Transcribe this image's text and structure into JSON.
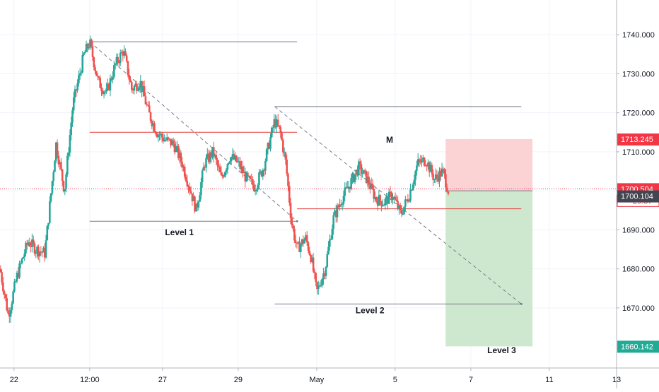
{
  "chart_data": {
    "type": "candlestick",
    "instrument_note": "",
    "y_axis": {
      "range": [
        1654.6,
        1748.9
      ],
      "ticks": [
        1740,
        1730,
        1720,
        1710,
        1700,
        1690,
        1680,
        1670
      ],
      "tick_labels": [
        "1740.000",
        "1730.000",
        "1720.000",
        "1710.000",
        "1700.000",
        "1690.000",
        "1680.000",
        "1670.000"
      ]
    },
    "x_axis": {
      "range": [
        0,
        22.0
      ],
      "ticks": [
        0.5,
        3.2,
        5.8,
        8.5,
        11.3,
        14.1,
        16.8,
        19.6,
        22.0
      ],
      "tick_labels": [
        "22",
        "12:00",
        "27",
        "29",
        "May",
        "5",
        "7",
        "11",
        "13"
      ]
    },
    "price_badges": {
      "stop": {
        "value": 1713.245,
        "label": "1713.245",
        "color": "#f23645"
      },
      "current": {
        "value": 1700.504,
        "label": "1700.504",
        "color": "#f23645"
      },
      "countdown": "29:57",
      "previous": {
        "value": 1700.104,
        "label": "1700.104",
        "color": "#434651"
      },
      "target": {
        "value": 1660.142,
        "label": "1660.142",
        "color": "#22ab94"
      }
    },
    "annotations": [
      {
        "text": "Level 1",
        "x": 6.4,
        "y": 1688.6
      },
      {
        "text": "Level 2",
        "x": 13.2,
        "y": 1668.6
      },
      {
        "text": "Level 3",
        "x": 17.9,
        "y": 1658.4
      },
      {
        "text": "M",
        "x": 13.9,
        "y": 1712.3
      }
    ],
    "horizontal_lines": [
      {
        "x1": 3.2,
        "x2": 10.6,
        "y": 1738.2,
        "color": "#787b86"
      },
      {
        "x1": 3.2,
        "x2": 10.6,
        "y": 1715.0,
        "color": "#e53935"
      },
      {
        "x1": 3.2,
        "x2": 10.6,
        "y": 1692.2,
        "color": "#787b86"
      },
      {
        "x1": 9.8,
        "x2": 18.6,
        "y": 1721.6,
        "color": "#787b86"
      },
      {
        "x1": 10.6,
        "x2": 18.6,
        "y": 1695.4,
        "color": "#e53935"
      },
      {
        "x1": 9.8,
        "x2": 18.6,
        "y": 1671.0,
        "color": "#787b86"
      }
    ],
    "dashed_lines": [
      {
        "x1": 3.2,
        "y1": 1738.2,
        "x2": 10.6,
        "y2": 1692.2
      },
      {
        "x1": 9.8,
        "y1": 1721.6,
        "x2": 18.6,
        "y2": 1671.0
      }
    ],
    "position": {
      "x_start": 15.9,
      "x_end": 19.0,
      "entry": 1700.0,
      "stop": 1713.245,
      "target": 1660.142,
      "stop_zone_color": "#fccbcd",
      "target_zone_color": "#c8e6c9"
    },
    "candle_colors": {
      "up": "#26a69a",
      "down": "#ef5350"
    },
    "series": [
      {
        "name": "",
        "path": [
          [
            0.0,
            1680
          ],
          [
            0.3,
            1668
          ],
          [
            0.6,
            1678
          ],
          [
            1.0,
            1687
          ],
          [
            1.3,
            1685
          ],
          [
            1.6,
            1684
          ],
          [
            2.0,
            1712
          ],
          [
            2.3,
            1700
          ],
          [
            2.6,
            1722
          ],
          [
            3.0,
            1735
          ],
          [
            3.2,
            1738
          ],
          [
            3.5,
            1728
          ],
          [
            3.8,
            1725
          ],
          [
            4.1,
            1732
          ],
          [
            4.4,
            1736
          ],
          [
            4.7,
            1726
          ],
          [
            5.0,
            1728
          ],
          [
            5.3,
            1720
          ],
          [
            5.6,
            1715
          ],
          [
            5.9,
            1713
          ],
          [
            6.2,
            1712
          ],
          [
            6.5,
            1707
          ],
          [
            6.8,
            1700
          ],
          [
            7.0,
            1695
          ],
          [
            7.3,
            1707
          ],
          [
            7.6,
            1710
          ],
          [
            7.9,
            1703
          ],
          [
            8.2,
            1709
          ],
          [
            8.5,
            1707
          ],
          [
            8.8,
            1703
          ],
          [
            9.1,
            1701
          ],
          [
            9.4,
            1706
          ],
          [
            9.8,
            1718
          ],
          [
            10.0,
            1715
          ],
          [
            10.2,
            1707
          ],
          [
            10.4,
            1692
          ],
          [
            10.6,
            1685
          ],
          [
            10.9,
            1688
          ],
          [
            11.1,
            1683
          ],
          [
            11.3,
            1674
          ],
          [
            11.6,
            1680
          ],
          [
            11.9,
            1693
          ],
          [
            12.2,
            1698
          ],
          [
            12.5,
            1702
          ],
          [
            12.8,
            1706
          ],
          [
            13.1,
            1703
          ],
          [
            13.4,
            1698
          ],
          [
            13.7,
            1697
          ],
          [
            14.0,
            1699
          ],
          [
            14.3,
            1694
          ],
          [
            14.6,
            1699
          ],
          [
            14.9,
            1707
          ],
          [
            15.2,
            1708
          ],
          [
            15.5,
            1703
          ],
          [
            15.8,
            1705
          ],
          [
            16.0,
            1700
          ]
        ]
      }
    ]
  }
}
